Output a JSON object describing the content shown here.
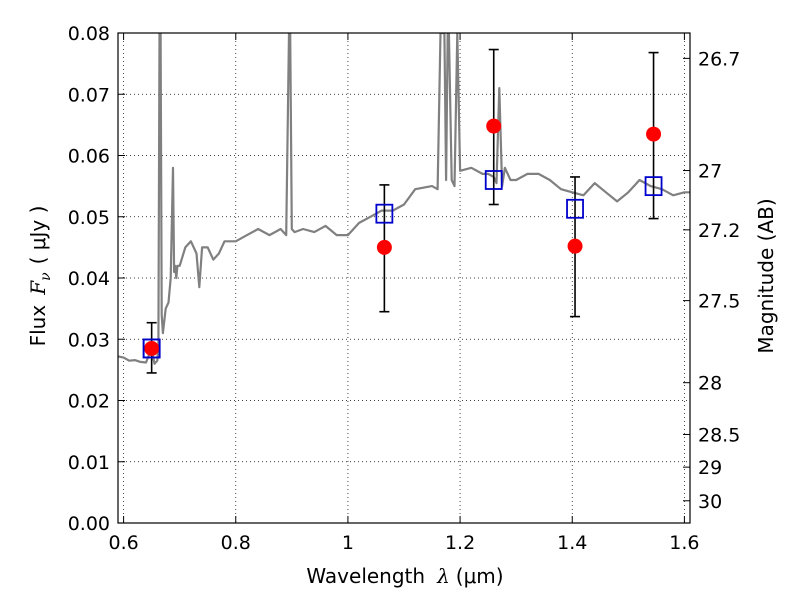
{
  "chart_data": {
    "type": "scatter",
    "xlabel": "Wavelength",
    "xlabel_symbol": "λ",
    "xlabel_unit": "(μm)",
    "ylabel": "Flux",
    "ylabel_symbol": "F",
    "ylabel_subscript": "ν",
    "ylabel_unit": "( μJy )",
    "y2label": "Magnitude (AB)",
    "xlim": [
      0.59,
      1.61
    ],
    "ylim": [
      0.0,
      0.08
    ],
    "grid": true,
    "grid_style": "dotted",
    "x_ticks": [
      0.6,
      0.8,
      1.0,
      1.2,
      1.4,
      1.6
    ],
    "x_tick_labels": [
      "0.6",
      "0.8",
      "1",
      "1.2",
      "1.4",
      "1.6"
    ],
    "y_ticks": [
      0.0,
      0.01,
      0.02,
      0.03,
      0.04,
      0.05,
      0.06,
      0.07,
      0.08
    ],
    "y_tick_labels": [
      "0.00",
      "0.01",
      "0.02",
      "0.03",
      "0.04",
      "0.05",
      "0.06",
      "0.07",
      "0.08"
    ],
    "y2_ticks": [
      {
        "label": "26.7",
        "mag": 26.7
      },
      {
        "label": "27",
        "mag": 27.0
      },
      {
        "label": "27.2",
        "mag": 27.2
      },
      {
        "label": "27.5",
        "mag": 27.5
      },
      {
        "label": "28",
        "mag": 28.0
      },
      {
        "label": "28.5",
        "mag": 28.5
      },
      {
        "label": "29",
        "mag": 29.0
      },
      {
        "label": "30",
        "mag": 30.0
      }
    ],
    "colors": {
      "spectrum": "#808080",
      "observed": "#ff0000",
      "model": "#0000cc",
      "errorbar": "#000000"
    },
    "series": [
      {
        "kind": "line",
        "x": [
          0.59,
          0.6,
          0.61,
          0.62,
          0.63,
          0.64,
          0.65,
          0.655,
          0.66,
          0.662,
          0.664,
          0.666,
          0.668,
          0.67,
          0.675,
          0.68,
          0.684,
          0.688,
          0.69,
          0.692,
          0.694,
          0.696,
          0.7,
          0.71,
          0.72,
          0.73,
          0.735,
          0.74,
          0.75,
          0.76,
          0.77,
          0.78,
          0.79,
          0.8,
          0.82,
          0.84,
          0.86,
          0.87,
          0.88,
          0.89,
          0.895,
          0.897,
          0.9,
          0.905,
          0.92,
          0.94,
          0.96,
          0.98,
          1.0,
          1.02,
          1.04,
          1.06,
          1.08,
          1.1,
          1.12,
          1.15,
          1.16,
          1.165,
          1.17,
          1.172,
          1.175,
          1.178,
          1.18,
          1.185,
          1.19,
          1.195,
          1.2,
          1.22,
          1.24,
          1.25,
          1.26,
          1.265,
          1.27,
          1.275,
          1.28,
          1.29,
          1.3,
          1.32,
          1.34,
          1.36,
          1.38,
          1.4,
          1.42,
          1.44,
          1.46,
          1.48,
          1.5,
          1.52,
          1.54,
          1.56,
          1.58,
          1.6,
          1.61
        ],
        "y": [
          0.0272,
          0.027,
          0.0265,
          0.0266,
          0.0263,
          0.0262,
          0.0285,
          0.026,
          0.0265,
          0.029,
          0.08,
          0.08,
          0.034,
          0.031,
          0.035,
          0.036,
          0.04,
          0.058,
          0.041,
          0.042,
          0.04,
          0.042,
          0.042,
          0.045,
          0.046,
          0.044,
          0.0385,
          0.045,
          0.045,
          0.043,
          0.044,
          0.046,
          0.046,
          0.046,
          0.047,
          0.048,
          0.047,
          0.0475,
          0.048,
          0.047,
          0.08,
          0.08,
          0.048,
          0.0475,
          0.048,
          0.0475,
          0.0485,
          0.047,
          0.047,
          0.049,
          0.05,
          0.051,
          0.051,
          0.052,
          0.0545,
          0.055,
          0.0545,
          0.08,
          0.08,
          0.08,
          0.056,
          0.08,
          0.08,
          0.056,
          0.055,
          0.08,
          0.0575,
          0.058,
          0.057,
          0.057,
          0.0565,
          0.0555,
          0.071,
          0.055,
          0.058,
          0.056,
          0.056,
          0.057,
          0.057,
          0.056,
          0.0545,
          0.054,
          0.0535,
          0.0555,
          0.054,
          0.0525,
          0.054,
          0.056,
          0.055,
          0.0545,
          0.0535,
          0.054,
          0.054
        ]
      },
      {
        "kind": "observed",
        "x": [
          0.65,
          1.065,
          1.26,
          1.405,
          1.545
        ],
        "y": [
          0.0285,
          0.045,
          0.0648,
          0.0452,
          0.0635
        ],
        "err_low": [
          0.0245,
          0.0345,
          0.052,
          0.0337,
          0.0497
        ],
        "err_high": [
          0.0327,
          0.0552,
          0.0773,
          0.0565,
          0.0768
        ]
      },
      {
        "kind": "model",
        "x": [
          0.65,
          1.065,
          1.26,
          1.405,
          1.545
        ],
        "y": [
          0.0285,
          0.0505,
          0.056,
          0.0513,
          0.055
        ]
      }
    ]
  }
}
